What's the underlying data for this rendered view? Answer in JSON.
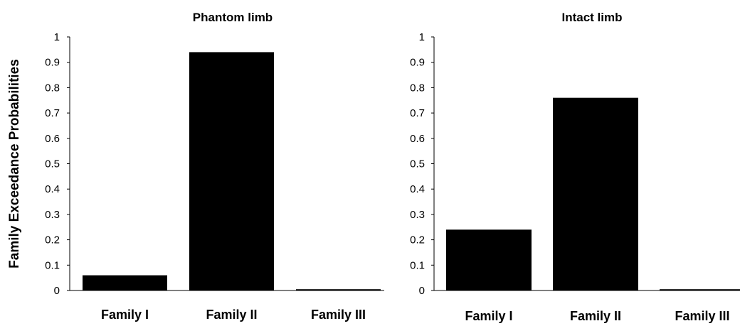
{
  "chart_data": [
    {
      "type": "bar",
      "title": "Phantom limb",
      "ylabel": "Family Exceedance Probabilities",
      "categories": [
        "Family I",
        "Family II",
        "Family III"
      ],
      "values": [
        0.06,
        0.94,
        0.005
      ],
      "ylim": [
        0,
        1
      ],
      "yticks": [
        "0",
        "0.1",
        "0.2",
        "0.3",
        "0.4",
        "0.5",
        "0.6",
        "0.7",
        "0.8",
        "0.9",
        "1"
      ],
      "bar_color": "#000000",
      "grid": false
    },
    {
      "type": "bar",
      "title": "Intact limb",
      "ylabel": "",
      "categories": [
        "Family I",
        "Family II",
        "Family III"
      ],
      "values": [
        0.24,
        0.76,
        0.005
      ],
      "ylim": [
        0,
        1
      ],
      "yticks": [
        "0",
        "0.1",
        "0.2",
        "0.3",
        "0.4",
        "0.5",
        "0.6",
        "0.7",
        "0.8",
        "0.9",
        "1"
      ],
      "bar_color": "#000000",
      "grid": false
    }
  ]
}
